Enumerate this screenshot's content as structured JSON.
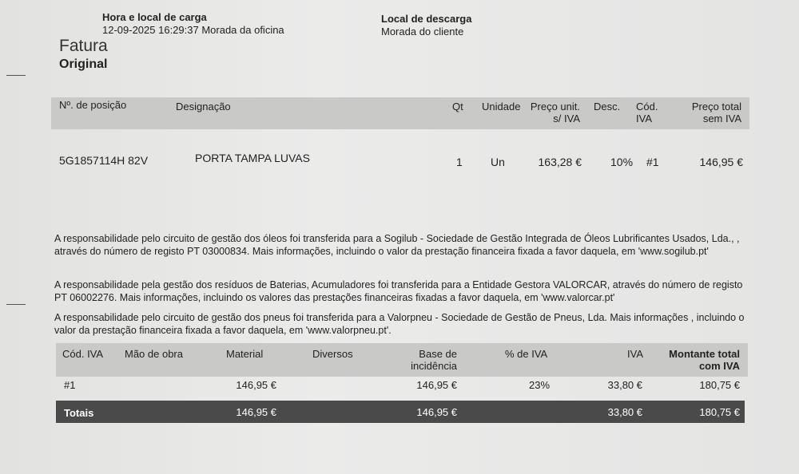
{
  "header": {
    "load_label": "Hora e local de carga",
    "load_value": "12-09-2025 16:29:37 Morada da oficina",
    "unload_label": "Local de descarga",
    "unload_value": "Morada do cliente",
    "doc_type": "Fatura",
    "doc_copy": "Original"
  },
  "items_table": {
    "headers": {
      "position": "Nº. de posição",
      "designation": "Designação",
      "qty": "Qt",
      "unit": "Unidade",
      "unit_price_1": "Preço unit.",
      "unit_price_2": "s/ IVA",
      "discount": "Desc.",
      "vat_code_1": "Cód.",
      "vat_code_2": "IVA",
      "total_1": "Preço total",
      "total_2": "sem IVA"
    },
    "rows": [
      {
        "position": "5G1857114H 82V",
        "designation": "PORTA TAMPA LUVAS",
        "qty": "1",
        "unit": "Un",
        "unit_price": "163,28 €",
        "discount": "10%",
        "vat_code": "#1",
        "total": "146,95 €"
      }
    ]
  },
  "notes": [
    "A responsabilidade pelo circuito de gestão dos óleos foi transferida para a Sogilub - Sociedade de Gestão Integrada de Óleos Lubrificantes Usados, Lda., , através do número de registo PT 03000834. Mais informações, incluindo o valor da prestação financeira fixada a favor daquela, em 'www.sogilub.pt'",
    "A responsabilidade pela gestão dos resíduos de Baterias, Acumuladores foi transferida para a Entidade Gestora VALORCAR, através do número de registo PT 06002276. Mais informações, incluindo os valores das prestações financeiras fixadas a favor daquela, em 'www.valorcar.pt'",
    "A responsabilidade pelo circuito de gestão dos pneus foi transferida para a Valorpneu - Sociedade de Gestão de Pneus, Lda. Mais informações , incluindo o valor da prestação financeira fixada a favor daquela, em 'www.valorpneu.pt'."
  ],
  "vat_table": {
    "headers": {
      "code": "Cód. IVA",
      "labor": "Mão de obra",
      "material": "Material",
      "misc": "Diversos",
      "base_1": "Base de",
      "base_2": "incidência",
      "rate": "% de IVA",
      "vat": "IVA",
      "total_1": "Montante total",
      "total_2": "com IVA"
    },
    "rows": [
      {
        "code": "#1",
        "material": "146,95 €",
        "base": "146,95 €",
        "rate": "23%",
        "vat": "33,80 €",
        "total": "180,75 €"
      }
    ],
    "totals": {
      "label": "Totais",
      "material": "146,95 €",
      "base": "146,95 €",
      "vat": "33,80 €",
      "total": "180,75 €"
    }
  }
}
